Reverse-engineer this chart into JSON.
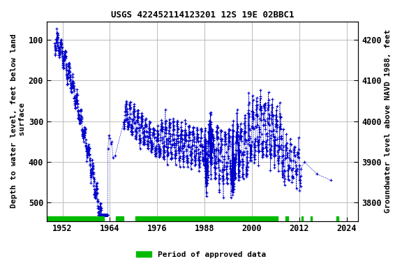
{
  "title": "USGS 422452114123201 12S 19E 02BBC1",
  "ylabel_left": "Depth to water level, feet below land\n surface",
  "ylabel_right": "Groundwater level above NAVD 1988, feet",
  "xlim": [
    1948,
    2027
  ],
  "ylim_left": [
    545,
    55
  ],
  "ylim_right": [
    3755,
    4245
  ],
  "xticks": [
    1952,
    1964,
    1976,
    1988,
    2000,
    2012,
    2024
  ],
  "yticks_left": [
    100,
    200,
    300,
    400,
    500
  ],
  "yticks_right": [
    3800,
    3900,
    4000,
    4100,
    4200
  ],
  "data_color": "#0000cc",
  "marker": "+",
  "marker_size": 2.5,
  "line_style": "--",
  "line_width": 0.4,
  "grid_color": "#bbbbbb",
  "background_color": "#ffffff",
  "legend_label": "Period of approved data",
  "legend_color": "#00bb00",
  "approved_periods": [
    [
      1948,
      1962.5
    ],
    [
      1965.5,
      1967.5
    ],
    [
      1970.5,
      2006.5
    ],
    [
      2008.5,
      2009.2
    ],
    [
      2012.5,
      2013.0
    ],
    [
      2014.8,
      2015.3
    ],
    [
      2021.5,
      2022.0
    ]
  ],
  "font_family": "monospace",
  "title_fontsize": 9,
  "label_fontsize": 8,
  "tick_fontsize": 8.5
}
